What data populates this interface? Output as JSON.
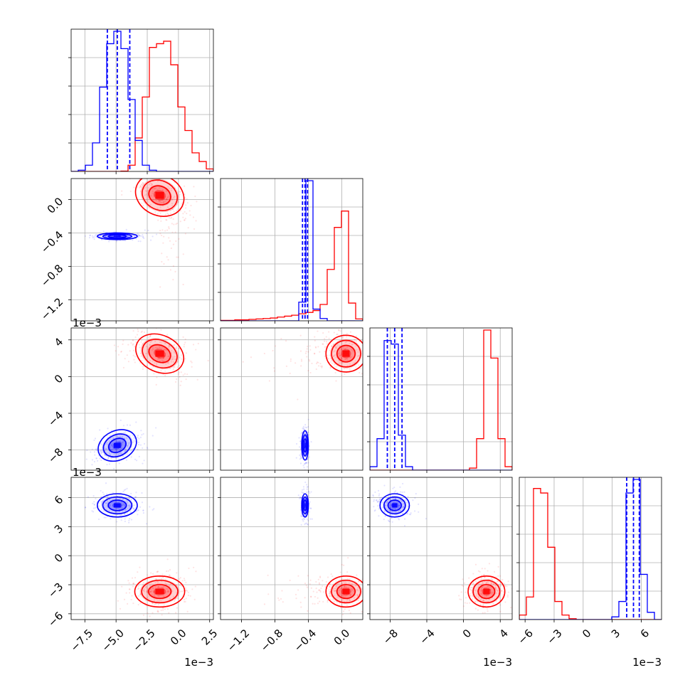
{
  "chart_data": {
    "type": "corner",
    "colors": {
      "red": "#ff0000",
      "blue": "#0000ff",
      "grid": "#b0b0b0",
      "frame": "#000000"
    },
    "grid": true,
    "params": [
      {
        "range": [
          -8.6,
          2.8
        ],
        "ticks": [
          -7.5,
          -5.0,
          -2.5,
          0.0,
          2.5
        ],
        "tick_labels": [
          "−7.5",
          "−5.0",
          "−2.5",
          "0.0",
          "2.5"
        ],
        "offset": "1e−3"
      },
      {
        "range": [
          -1.45,
          0.25
        ],
        "ticks": [
          -1.2,
          -0.8,
          -0.4,
          0.0
        ],
        "tick_labels": [
          "−1.2",
          "−0.8",
          "−0.4",
          "0.0"
        ],
        "offset": "1e−3"
      },
      {
        "range": [
          -10.2,
          5.3
        ],
        "ticks": [
          -8,
          -4,
          0,
          4
        ],
        "tick_labels": [
          "−8",
          "−4",
          "0",
          "4"
        ],
        "offset": "1e−3"
      },
      {
        "range": [
          -6.6,
          8.1
        ],
        "ticks": [
          -6,
          -3,
          0,
          3,
          6
        ],
        "tick_labels": [
          "−6",
          "−3",
          "0",
          "3",
          "6"
        ],
        "offset": "1e−3"
      }
    ],
    "series": [
      {
        "color": "red",
        "means": [
          -1.5,
          0.05,
          2.5,
          -3.7
        ],
        "stds": [
          1.0,
          0.12,
          1.0,
          0.8
        ],
        "histograms": [
          {
            "edges": [
              -8.6,
              -8.03,
              -7.46,
              -6.89,
              -6.32,
              -5.75,
              -5.18,
              -4.61,
              -4.04,
              -3.47,
              -2.9,
              -2.33,
              -1.76,
              -1.19,
              -0.62,
              -0.05,
              0.52,
              1.09,
              1.66,
              2.23,
              2.8
            ],
            "counts": [
              0,
              0,
              0,
              0,
              0,
              0,
              0,
              0.3,
              5,
              27,
              60,
              100,
              103,
              105,
              86,
              52,
              33,
              15,
              8,
              2
            ]
          },
          {
            "edges": [
              -1.45,
              -1.365,
              -1.28,
              -1.195,
              -1.11,
              -1.025,
              -0.94,
              -0.855,
              -0.77,
              -0.685,
              -0.6,
              -0.515,
              -0.43,
              -0.345,
              -0.26,
              -0.175,
              -0.09,
              -0.005,
              0.08,
              0.165,
              0.25
            ],
            "counts": [
              1,
              1,
              2,
              2,
              3,
              4,
              5,
              6,
              8,
              10,
              12,
              15,
              18,
              22,
              35,
              110,
              200,
              235,
              38,
              4
            ]
          },
          {
            "edges": [
              -10.2,
              -9.425,
              -8.65,
              -7.875,
              -7.1,
              -6.325,
              -5.55,
              -4.775,
              -4.0,
              -3.225,
              -2.45,
              -1.675,
              -0.9,
              -0.125,
              0.65,
              1.425,
              2.2,
              2.975,
              3.75,
              4.525,
              5.3
            ],
            "counts": [
              0,
              0,
              0,
              0,
              0,
              0,
              0,
              0,
              0,
              0,
              0,
              0,
              0,
              0,
              3,
              45,
              200,
              160,
              45,
              5
            ]
          },
          {
            "edges": [
              -6.6,
              -5.865,
              -5.13,
              -4.395,
              -3.66,
              -2.925,
              -2.19,
              -1.455,
              -0.72,
              0.015,
              0.75,
              1.485,
              2.22,
              2.955,
              3.69,
              4.425,
              5.16,
              5.895,
              6.63,
              7.365,
              8.1
            ],
            "counts": [
              5,
              25,
              145,
              140,
              80,
              20,
              5,
              1,
              0,
              0,
              0,
              0,
              0,
              0,
              0,
              0,
              0,
              0,
              0,
              0
            ]
          }
        ]
      },
      {
        "color": "blue",
        "means": [
          -4.9,
          -0.44,
          -7.5,
          5.2
        ],
        "stds": [
          0.8,
          0.02,
          0.8,
          0.6
        ],
        "quantiles": [
          [
            -5.7,
            -4.9,
            -3.9
          ],
          [
            -0.47,
            -0.44,
            -0.41
          ],
          [
            -8.3,
            -7.5,
            -6.7
          ],
          [
            4.5,
            5.2,
            5.8
          ]
        ],
        "histograms": [
          {
            "edges": [
              -8.6,
              -8.03,
              -7.46,
              -6.89,
              -6.32,
              -5.75,
              -5.18,
              -4.61,
              -4.04,
              -3.47,
              -2.9,
              -2.33,
              -1.76,
              -1.19,
              -0.62,
              -0.05,
              0.52,
              1.09,
              1.66,
              2.23,
              2.8
            ],
            "counts": [
              0,
              1,
              5,
              23,
              68,
              103,
              113,
              99,
              58,
              25,
              5,
              1,
              0,
              0,
              0,
              0,
              0,
              0,
              0,
              0
            ]
          },
          {
            "edges": [
              -1.45,
              -1.365,
              -1.28,
              -1.195,
              -1.11,
              -1.025,
              -0.94,
              -0.855,
              -0.77,
              -0.685,
              -0.6,
              -0.515,
              -0.43,
              -0.345,
              -0.26,
              -0.175,
              -0.09,
              -0.005,
              0.08,
              0.165,
              0.25
            ],
            "counts": [
              0,
              0,
              0,
              0,
              0,
              0,
              0,
              0,
              0,
              0,
              0,
              40,
              300,
              25,
              5,
              0,
              0,
              0,
              0,
              0
            ]
          },
          {
            "edges": [
              -10.2,
              -9.425,
              -8.65,
              -7.875,
              -7.1,
              -6.325,
              -5.55,
              -4.775,
              -4.0,
              -3.225,
              -2.45,
              -1.675,
              -0.9,
              -0.125,
              0.65,
              1.425,
              2.2,
              2.975,
              3.75,
              4.525,
              5.3
            ],
            "counts": [
              5,
              45,
              185,
              180,
              50,
              5,
              0,
              0,
              0,
              0,
              0,
              0,
              0,
              0,
              0,
              0,
              0,
              0,
              0,
              0
            ]
          },
          {
            "edges": [
              -6.6,
              -5.865,
              -5.13,
              -4.395,
              -3.66,
              -2.925,
              -2.19,
              -1.455,
              -0.72,
              0.015,
              0.75,
              1.485,
              2.22,
              2.955,
              3.69,
              4.425,
              5.16,
              5.895,
              6.63,
              7.365,
              8.1
            ],
            "counts": [
              0,
              0,
              0,
              0,
              0,
              0,
              0,
              0,
              0,
              0,
              0,
              0,
              0,
              3,
              20,
              140,
              155,
              50,
              8,
              0
            ]
          }
        ]
      }
    ]
  }
}
